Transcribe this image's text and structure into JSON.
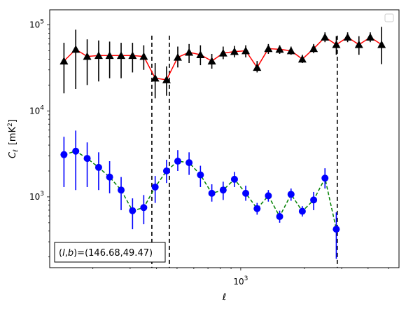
{
  "chart_data": {
    "type": "scatter",
    "xscale": "log",
    "yscale": "log",
    "xlim": [
      125,
      5600
    ],
    "ylim": [
      150,
      150000
    ],
    "xlabel": "ℓ",
    "ylabel_main": "C",
    "ylabel_sub": "ℓ",
    "ylabel_unit": "[mK",
    "ylabel_unit_sup": "2",
    "ylabel_unit_close": "]",
    "x_tick_label_base": "10",
    "x_tick_label_exp": "3",
    "x_major_ticks": [
      1000
    ],
    "y_tick_labels": [
      {
        "value": 1000,
        "base": "10",
        "exp": "3"
      },
      {
        "value": 10000,
        "base": "10",
        "exp": "4"
      },
      {
        "value": 100000,
        "base": "10",
        "exp": "5"
      }
    ],
    "vlines": [
      380,
      460,
      2860
    ],
    "annotation_prefix": "(",
    "annotation_l": "l",
    "annotation_comma": ",",
    "annotation_b": "b",
    "annotation_suffix": ")=(146.68,49.47)",
    "legend": {
      "placement": "top-right",
      "entries": []
    },
    "series": [
      {
        "color": "#000000",
        "line_color": "#ff0000",
        "line_style": "solid",
        "marker": "triangle",
        "x": [
          146,
          166,
          188,
          213,
          240,
          272,
          308,
          348,
          394,
          446,
          504,
          570,
          645,
          730,
          826,
          934,
          1056,
          1195,
          1351,
          1528,
          1729,
          1955,
          2212,
          2502,
          2830,
          3201,
          3621,
          4096,
          4634
        ],
        "y": [
          38000,
          52000,
          43000,
          44000,
          44000,
          44000,
          44000,
          43000,
          24000,
          23000,
          42000,
          48000,
          45000,
          38000,
          47000,
          49000,
          50000,
          32000,
          53000,
          52000,
          50000,
          40000,
          53000,
          72000,
          59000,
          72000,
          59000,
          72000,
          59000
        ],
        "yerr_low": [
          16000,
          18000,
          20000,
          22000,
          24000,
          24000,
          28000,
          30000,
          14000,
          15000,
          32000,
          36000,
          34000,
          31000,
          40000,
          42000,
          42000,
          28000,
          46000,
          46000,
          45000,
          36000,
          47000,
          63000,
          45000,
          63000,
          45000,
          63000,
          35000
        ],
        "yerr_high": [
          62000,
          88000,
          68000,
          66000,
          64000,
          62000,
          62000,
          58000,
          36000,
          33000,
          56000,
          60000,
          58000,
          46000,
          56000,
          57000,
          58000,
          38000,
          60000,
          58000,
          56000,
          45000,
          60000,
          82000,
          74000,
          82000,
          74000,
          82000,
          95000
        ]
      },
      {
        "color": "#0000ff",
        "line_color": "#008000",
        "line_style": "dashed",
        "marker": "circle",
        "x": [
          146,
          166,
          188,
          213,
          240,
          272,
          308,
          348,
          394,
          446,
          504,
          570,
          645,
          730,
          826,
          934,
          1056,
          1195,
          1351,
          1528,
          1729,
          1955,
          2212,
          2502,
          2830,
          3201,
          3621
        ],
        "y": [
          3100,
          3400,
          2800,
          2200,
          1700,
          1200,
          690,
          750,
          1300,
          2000,
          2600,
          2500,
          1800,
          1100,
          1200,
          1600,
          1100,
          730,
          1030,
          590,
          1070,
          680,
          920,
          1650,
          420,
          0,
          0
        ],
        "yerr_low": [
          1300,
          1200,
          1300,
          1200,
          1100,
          700,
          420,
          480,
          850,
          1450,
          2000,
          1800,
          1300,
          880,
          920,
          1300,
          900,
          620,
          880,
          500,
          900,
          590,
          700,
          1250,
          190,
          0,
          0
        ],
        "yerr_high": [
          5000,
          5900,
          4300,
          3300,
          2600,
          1700,
          960,
          1050,
          1750,
          2700,
          3500,
          3300,
          2300,
          1400,
          1500,
          1950,
          1350,
          850,
          1200,
          690,
          1250,
          780,
          1140,
          2150,
          660,
          0,
          0
        ]
      }
    ]
  }
}
